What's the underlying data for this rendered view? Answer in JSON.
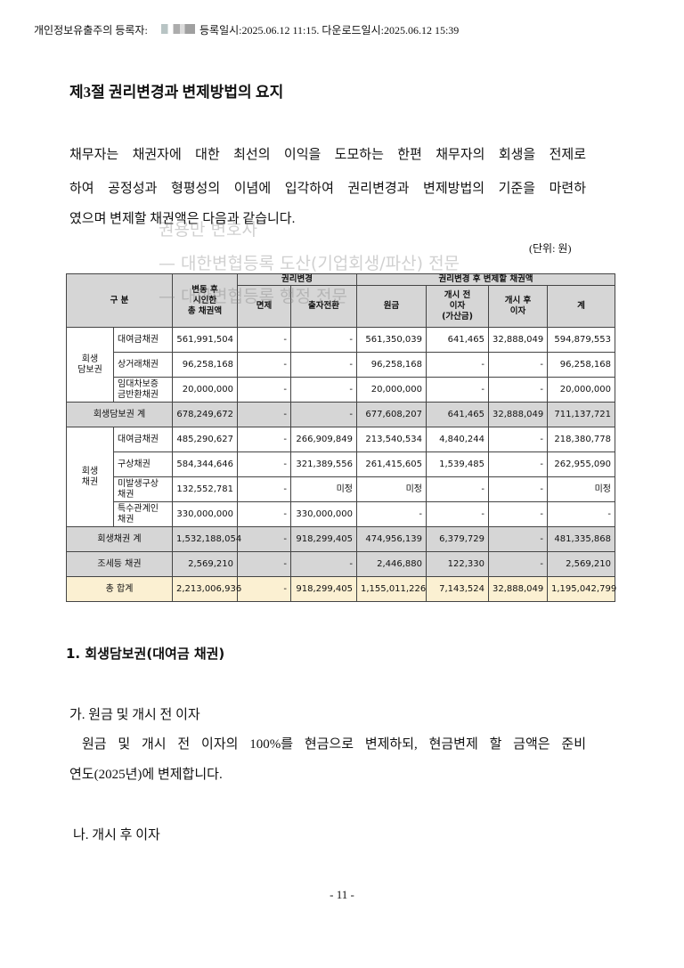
{
  "header": {
    "prefix": "개인정보유출주의 등록자:",
    "info": "등록일시:2025.06.12 11:15. 다운로드일시:2025.06.12 15:39"
  },
  "title": "제3절 권리변경과 변제방법의 요지",
  "intro": [
    "채무자는 채권자에 대한 최선의 이익을 도모하는 한편 채무자의 회생을 전제로",
    "하여 공정성과 형평성의 이념에 입각하여 권리변경과 변제방법의 기준을 마련하",
    "였으며 변제할 채권액은 다음과 같습니다."
  ],
  "watermark": [
    "권용만 변호사",
    "— 대한변협등록 도산(기업회생/파산) 전문",
    "— 대한변협등록 행정 전문"
  ],
  "unit": "(단위: 원)",
  "table": {
    "head": {
      "category": "구 분",
      "total": "변동 후\n시인한\n총 채권액",
      "change": "권리변경",
      "change_cols": [
        "면제",
        "출자전환"
      ],
      "repay": "권리변경 후 변제할 채권액",
      "repay_cols": [
        "원금",
        "개시 전\n이자\n(가산금)",
        "개시 후\n이자",
        "계"
      ]
    },
    "body": [
      {
        "group": "회생\n담보권",
        "rows": [
          {
            "label": "대여금채권",
            "cells": [
              "561,991,504",
              "-",
              "-",
              "561,350,039",
              "641,465",
              "32,888,049",
              "594,879,553"
            ]
          },
          {
            "label": "상거래채권",
            "cells": [
              "96,258,168",
              "-",
              "-",
              "96,258,168",
              "-",
              "-",
              "96,258,168"
            ]
          },
          {
            "label": "임대차보증\n금반환채권",
            "cells": [
              "20,000,000",
              "-",
              "-",
              "20,000,000",
              "-",
              "-",
              "20,000,000"
            ]
          }
        ]
      },
      {
        "label": "회생담보권 계",
        "cells": [
          "678,249,672",
          "-",
          "-",
          "677,608,207",
          "641,465",
          "32,888,049",
          "711,137,721"
        ]
      },
      {
        "group": "회생\n채권",
        "rows": [
          {
            "label": "대여금채권",
            "cells": [
              "485,290,627",
              "-",
              "266,909,849",
              "213,540,534",
              "4,840,244",
              "-",
              "218,380,778"
            ]
          },
          {
            "label": "구상채권",
            "cells": [
              "584,344,646",
              "-",
              "321,389,556",
              "261,415,605",
              "1,539,485",
              "-",
              "262,955,090"
            ]
          },
          {
            "label": "미발생구상\n채권",
            "cells": [
              "132,552,781",
              "-",
              "미정",
              "미정",
              "-",
              "-",
              "미정"
            ]
          },
          {
            "label": "특수관계인\n채권",
            "cells": [
              "330,000,000",
              "-",
              "330,000,000",
              "-",
              "-",
              "-",
              "-"
            ]
          }
        ]
      },
      {
        "label": "회생채권 계",
        "cells": [
          "1,532,188,054",
          "-",
          "918,299,405",
          "474,956,139",
          "6,379,729",
          "-",
          "481,335,868"
        ]
      },
      {
        "label": "조세등 채권",
        "cells": [
          "2,569,210",
          "-",
          "-",
          "2,446,880",
          "122,330",
          "-",
          "2,569,210"
        ]
      },
      {
        "label": "총 합계",
        "cells": [
          "2,213,006,936",
          "-",
          "918,299,405",
          "1,155,011,226",
          "7,143,524",
          "32,888,049",
          "1,195,042,799"
        ]
      }
    ]
  },
  "section": "1. 회생담보권(대여금 채권)",
  "item_a": "가. 원금 및 개시 전 이자",
  "item_a_text": [
    "원금 및 개시 전 이자의 100%를 현금으로 변제하되, 현금변제 할 금액은 준비",
    "연도(2025년)에 변제합니다."
  ],
  "item_b": "나. 개시 후 이자",
  "footer": "- 11 -"
}
